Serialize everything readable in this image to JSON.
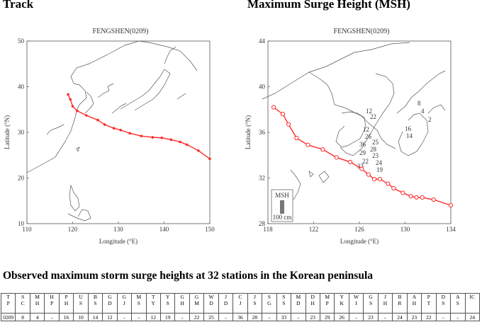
{
  "headings": {
    "track": "Track",
    "msh": "Maximum Surge Height (MSH)"
  },
  "colors": {
    "track_line": "#ff2a2a",
    "land_outline": "#555555",
    "legend_bar": "#777777"
  },
  "charts_labels": {
    "track_plot_title": "FENGSHEN(0209)",
    "msh_plot_title": "FENGSHEN(0209)",
    "xlabel": "Longitude (°E)",
    "ylabel": "Latitude (°N)",
    "legend_title": "MSH",
    "legend_scale": "100 cm"
  },
  "chart_data": [
    {
      "type": "line",
      "title": "FENGSHEN(0209)",
      "xlabel": "Longitude (°E)",
      "ylabel": "Latitude (°N)",
      "xlim": [
        110,
        150
      ],
      "ylim": [
        10,
        50
      ],
      "xticks": [
        110,
        120,
        130,
        140,
        150
      ],
      "yticks": [
        10,
        20,
        30,
        40,
        50
      ],
      "series": [
        {
          "x": [
            150,
            147.5,
            145,
            143.5,
            141.5,
            139.5,
            137.5,
            135,
            132.5,
            130.5,
            129,
            127,
            125.5,
            123,
            121,
            120,
            119.5,
            119
          ],
          "y": [
            24.2,
            26.0,
            27.3,
            27.9,
            28.4,
            28.8,
            28.9,
            29.2,
            29.8,
            30.5,
            30.9,
            31.7,
            32.7,
            33.7,
            34.7,
            35.7,
            37.2,
            38.3
          ]
        }
      ]
    },
    {
      "type": "line",
      "title": "FENGSHEN(0209)",
      "xlabel": "Longitude (°E)",
      "ylabel": "Latitude (°N)",
      "xlim": [
        118,
        134
      ],
      "ylim": [
        28,
        44
      ],
      "xticks": [
        118,
        122,
        126,
        130,
        134
      ],
      "yticks": [
        28,
        32,
        36,
        40,
        44
      ],
      "series": [
        {
          "x": [
            134,
            132.5,
            131.5,
            131,
            130.5,
            129.8,
            129,
            128.5,
            127.8,
            127.3,
            126.8,
            126.2,
            125.2,
            124,
            122.8,
            121.5,
            120.5,
            119.8,
            119.3,
            118.5
          ],
          "y": [
            29.6,
            30.1,
            30.3,
            30.3,
            30.4,
            30.7,
            31.1,
            31.5,
            31.9,
            31.9,
            32.3,
            32.8,
            33.4,
            33.8,
            34.5,
            34.9,
            35.5,
            36.7,
            37.6,
            38.2
          ]
        }
      ],
      "station_labels": [
        "8",
        "4",
        "12",
        "22",
        "2",
        "16",
        "14",
        "12",
        "26",
        "25",
        "36",
        "28",
        "29",
        "23",
        "22",
        "24",
        "33",
        "19"
      ]
    }
  ],
  "section_title": "Observed maximum storm surge heights at 32 stations in the Korean peninsula",
  "table": {
    "headers": [
      [
        "T",
        "P"
      ],
      [
        "S",
        "C"
      ],
      [
        "M",
        "H"
      ],
      [
        "H",
        "P"
      ],
      [
        "P",
        "H"
      ],
      [
        "U",
        "S"
      ],
      [
        "B",
        "S"
      ],
      [
        "G",
        "D"
      ],
      [
        "G",
        "J"
      ],
      [
        "M",
        "S"
      ],
      [
        "T",
        "Y"
      ],
      [
        "Y",
        "S"
      ],
      [
        "G",
        "H"
      ],
      [
        "G",
        "M"
      ],
      [
        "W",
        "D"
      ],
      [
        "J",
        "D"
      ],
      [
        "C",
        "J"
      ],
      [
        "J",
        "S"
      ],
      [
        "S",
        "G"
      ],
      [
        "S",
        "S"
      ],
      [
        "M",
        "D"
      ],
      [
        "D",
        "H"
      ],
      [
        "M",
        "P"
      ],
      [
        "Y",
        "K"
      ],
      [
        "W",
        "I"
      ],
      [
        "G",
        "S"
      ],
      [
        "J",
        "H"
      ],
      [
        "B",
        "R"
      ],
      [
        "A",
        "H"
      ],
      [
        "P",
        "T"
      ],
      [
        "D",
        "S"
      ],
      [
        "A",
        "S"
      ],
      [
        "IC"
      ]
    ],
    "values": [
      "0209",
      "8",
      "4",
      "-",
      "16",
      "10",
      "14",
      "12",
      "-",
      "-",
      "12",
      "19",
      "-",
      "22",
      "25",
      "-",
      "36",
      "28",
      "-",
      "33",
      "-",
      "23",
      "29",
      "26",
      "-",
      "23",
      "-",
      "24",
      "23",
      "22",
      "-",
      "-",
      "24"
    ]
  }
}
